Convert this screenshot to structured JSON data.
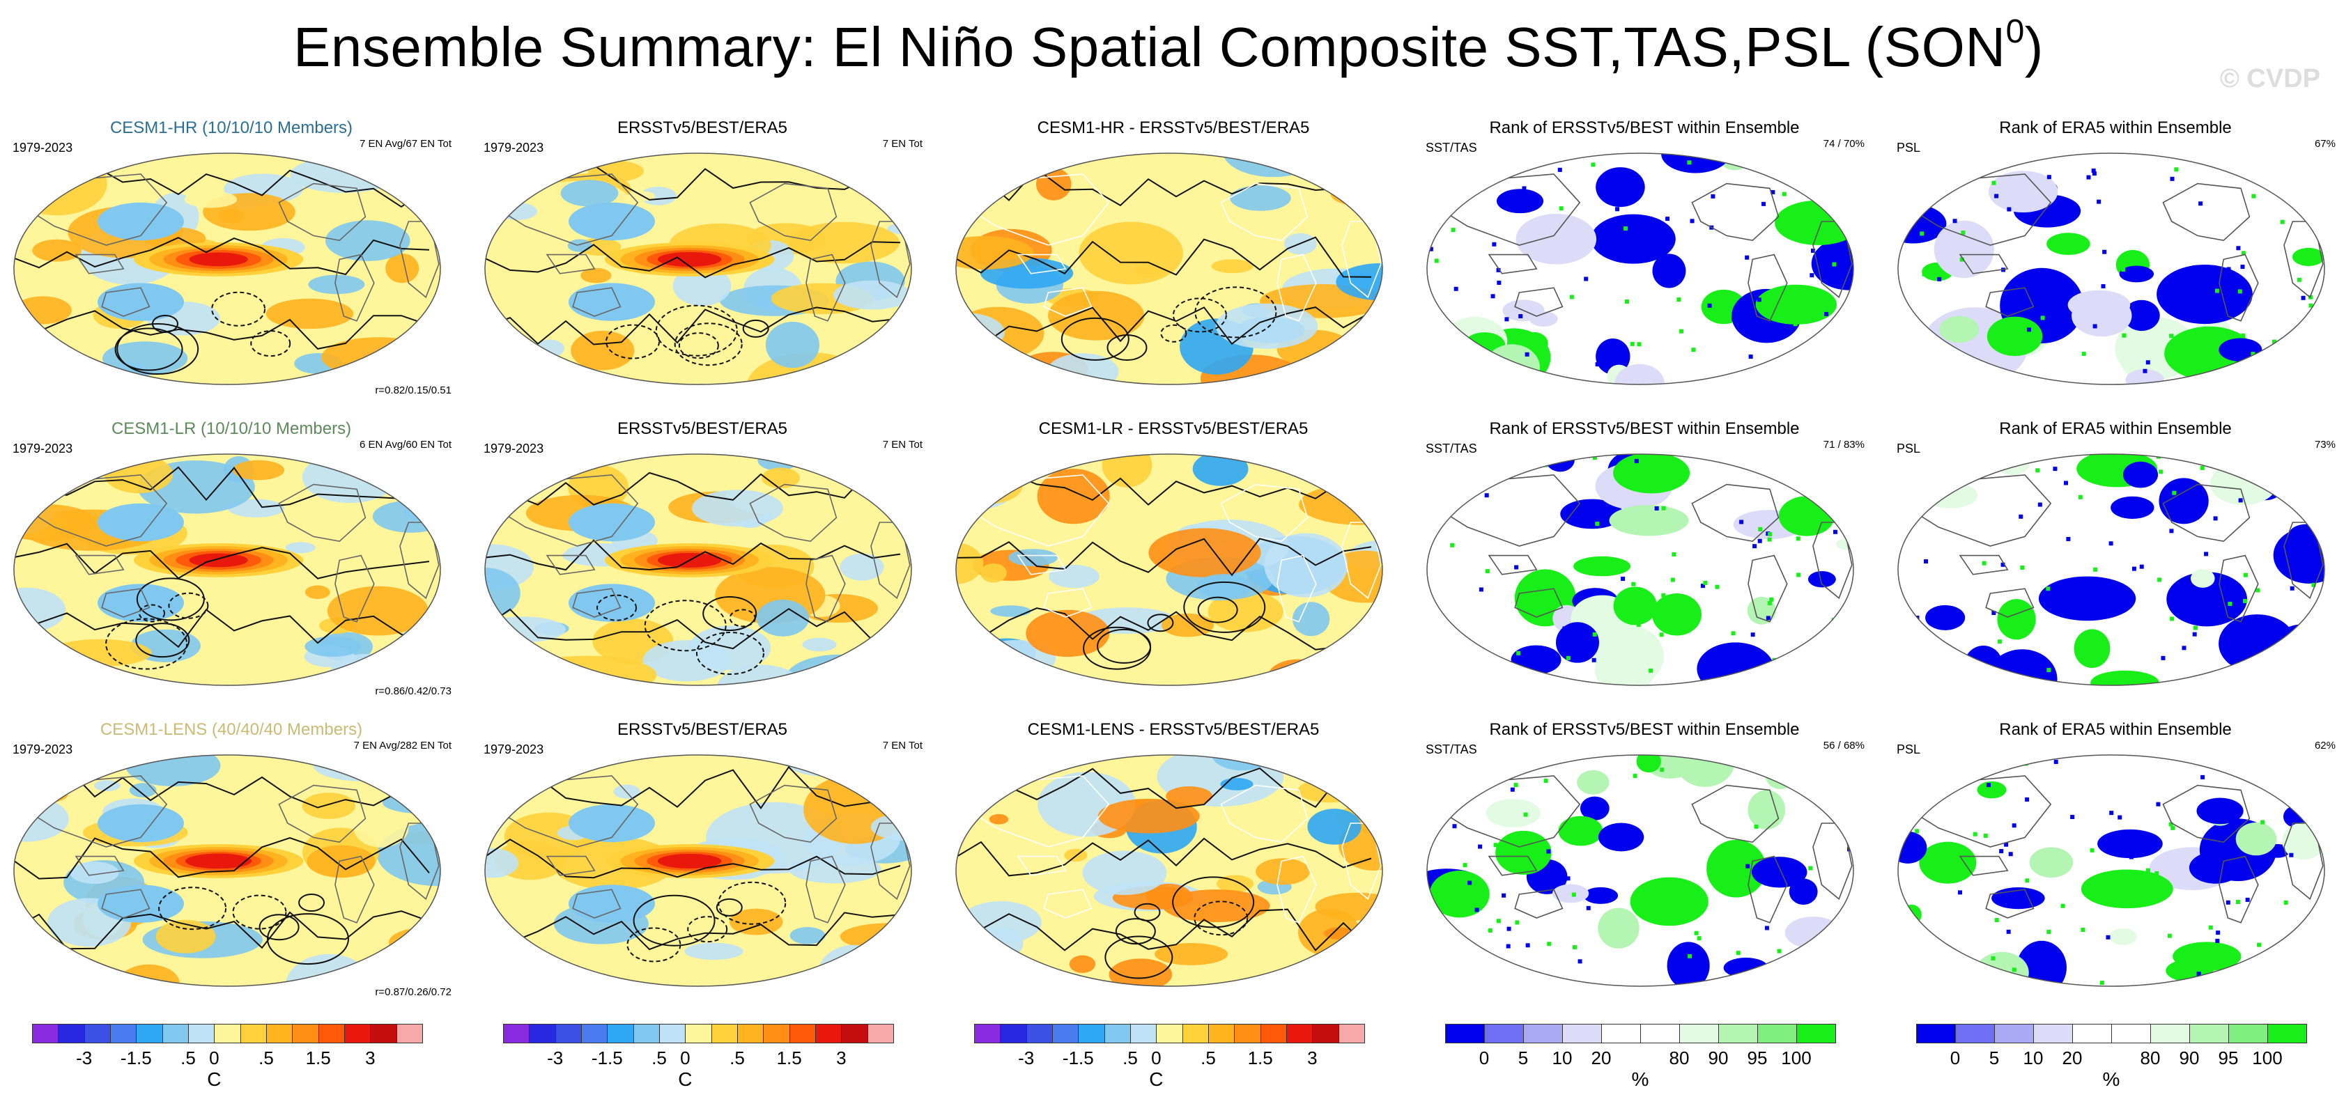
{
  "title": "Ensemble Summary: El Niño Spatial Composite SST,TAS,PSL (SON",
  "title_sup": "0",
  "title_close": ")",
  "watermark": "© CVDP",
  "chart_data": {
    "type": "map-panel-grid",
    "rows": [
      {
        "panels": [
          {
            "title": "CESM1-HR (10/10/10 Members)",
            "left_label": "1979-2023",
            "right_label": "7 EN Avg/67 EN Tot",
            "bottom_label": "r=0.82/0.15/0.51",
            "kind": "anomaly",
            "intensity": 0.9
          },
          {
            "title": "ERSSTv5/BEST/ERA5",
            "left_label": "1979-2023",
            "right_label": "7 EN Tot",
            "bottom_label": "",
            "kind": "anomaly",
            "intensity": 1.0
          },
          {
            "title": "CESM1-HR - ERSSTv5/BEST/ERA5",
            "left_label": "",
            "right_label": "",
            "bottom_label": "",
            "kind": "difference",
            "intensity": 0.5
          },
          {
            "title": "Rank of ERSSTv5/BEST within Ensemble",
            "left_label": "SST/TAS",
            "right_label": "74 / 70%",
            "bottom_label": "",
            "kind": "rank",
            "intensity": 0.7
          },
          {
            "title": "Rank of ERA5 within Ensemble",
            "left_label": "PSL",
            "right_label": "67%",
            "bottom_label": "",
            "kind": "rank",
            "intensity": 0.8
          }
        ]
      },
      {
        "panels": [
          {
            "title": "CESM1-LR (10/10/10 Members)",
            "left_label": "1979-2023",
            "right_label": "6 EN Avg/60 EN Tot",
            "bottom_label": "r=0.86/0.42/0.73",
            "kind": "anomaly",
            "intensity": 0.9
          },
          {
            "title": "ERSSTv5/BEST/ERA5",
            "left_label": "1979-2023",
            "right_label": "7 EN Tot",
            "bottom_label": "",
            "kind": "anomaly",
            "intensity": 1.0
          },
          {
            "title": "CESM1-LR - ERSSTv5/BEST/ERA5",
            "left_label": "",
            "right_label": "",
            "bottom_label": "",
            "kind": "difference",
            "intensity": 0.5
          },
          {
            "title": "Rank of ERSSTv5/BEST within Ensemble",
            "left_label": "SST/TAS",
            "right_label": "71 / 83%",
            "bottom_label": "",
            "kind": "rank",
            "intensity": 0.6
          },
          {
            "title": "Rank of ERA5 within Ensemble",
            "left_label": "PSL",
            "right_label": "73%",
            "bottom_label": "",
            "kind": "rank",
            "intensity": 0.7
          }
        ]
      },
      {
        "panels": [
          {
            "title": "CESM1-LENS (40/40/40 Members)",
            "left_label": "1979-2023",
            "right_label": "7 EN Avg/282 EN Tot",
            "bottom_label": "r=0.87/0.26/0.72",
            "kind": "anomaly",
            "intensity": 1.05
          },
          {
            "title": "ERSSTv5/BEST/ERA5",
            "left_label": "1979-2023",
            "right_label": "7 EN Tot",
            "bottom_label": "",
            "kind": "anomaly",
            "intensity": 1.0
          },
          {
            "title": "CESM1-LENS - ERSSTv5/BEST/ERA5",
            "left_label": "",
            "right_label": "",
            "bottom_label": "",
            "kind": "difference",
            "intensity": 0.55
          },
          {
            "title": "Rank of ERSSTv5/BEST within Ensemble",
            "left_label": "SST/TAS",
            "right_label": "56 / 68%",
            "bottom_label": "",
            "kind": "rank",
            "intensity": 0.6
          },
          {
            "title": "Rank of ERA5 within Ensemble",
            "left_label": "PSL",
            "right_label": "62%",
            "bottom_label": "",
            "kind": "rank",
            "intensity": 0.7
          }
        ]
      }
    ],
    "anomaly_colorbar": {
      "colors": [
        "#8a2be2",
        "#2828e0",
        "#3c50e6",
        "#4a7cef",
        "#2fa7f3",
        "#80c8f0",
        "#bfe2f6",
        "#fff59a",
        "#ffd23c",
        "#ffb31e",
        "#ff8f14",
        "#ff5a0a",
        "#e8180c",
        "#c40e0e",
        "#f7a8a8"
      ],
      "tick_labels": [
        "-3",
        "-1.5",
        ".5",
        "0",
        ".5",
        "1.5",
        "3"
      ],
      "tick_boundaries": [
        2,
        4,
        6,
        7,
        9,
        11,
        13
      ],
      "unit": "C"
    },
    "rank_colorbar": {
      "colors": [
        "#0000ee",
        "#6f6ff3",
        "#a9a9f5",
        "#dcdcf9",
        "#ffffff",
        "#ffffff",
        "#e2fbe2",
        "#b4f5b4",
        "#7eef7e",
        "#18ee18"
      ],
      "tick_labels": [
        "0",
        "5",
        "10",
        "20",
        "80",
        "90",
        "95",
        "100"
      ],
      "tick_boundaries": [
        1,
        2,
        3,
        4,
        6,
        7,
        8,
        9
      ],
      "unit": "%"
    },
    "colorbar_palettes": [
      "anomaly",
      "anomaly",
      "anomaly",
      "rank",
      "rank"
    ]
  }
}
